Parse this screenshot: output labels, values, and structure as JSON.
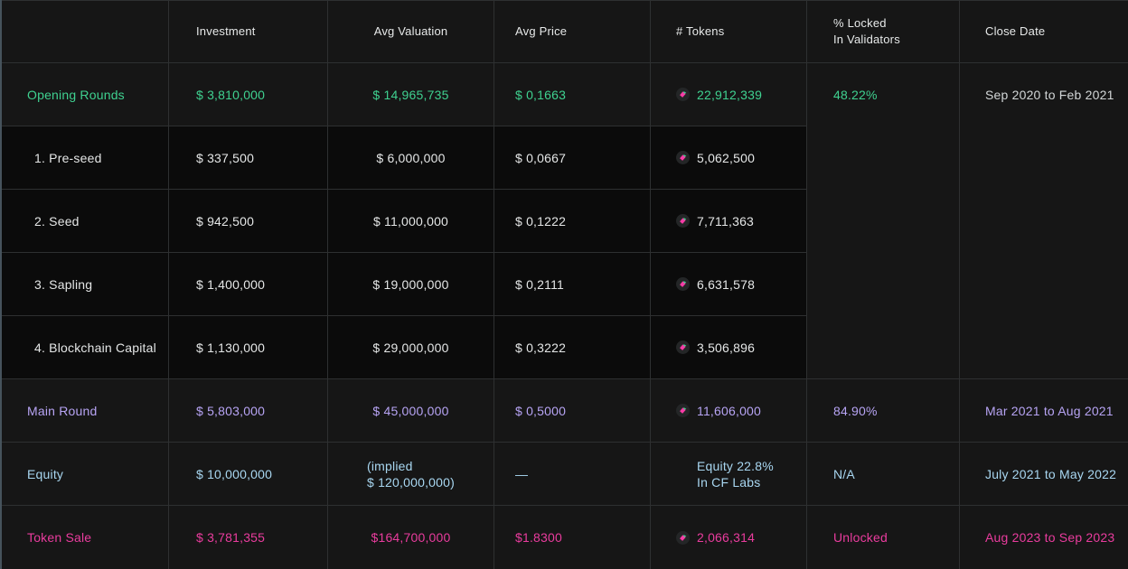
{
  "header": {
    "label": "",
    "investment": "Investment",
    "avg_valuation": "Avg Valuation",
    "avg_price": "Avg Price",
    "tokens": "# Tokens",
    "locked_line1": "% Locked",
    "locked_line2": "In Validators",
    "close_date": "Close Date"
  },
  "rows": [
    {
      "id": "opening-rounds",
      "label": "Opening Rounds",
      "tone": "green",
      "shade": "light",
      "indent": false,
      "investment": "$ 3,810,000",
      "avg_valuation": "$ 14,965,735",
      "avg_price": "$ 0,1663",
      "tokens": "22,912,339",
      "token_icon": true,
      "locked": "48.22%",
      "close_date": "Sep 2020 to Feb 2021",
      "close_date_muted": true
    },
    {
      "id": "pre-seed",
      "label": "1. Pre-seed",
      "tone": "neutral",
      "shade": "dark",
      "indent": true,
      "investment": "$ 337,500",
      "avg_valuation": "$ 6,000,000",
      "avg_price": "$ 0,0667",
      "tokens": "5,062,500",
      "token_icon": true,
      "locked": null,
      "close_date": null
    },
    {
      "id": "seed",
      "label": "2. Seed",
      "tone": "neutral",
      "shade": "dark",
      "indent": true,
      "investment": "$ 942,500",
      "avg_valuation": "$ 11,000,000",
      "avg_price": "$ 0,1222",
      "tokens": "7,711,363",
      "token_icon": true,
      "locked": null,
      "close_date": null
    },
    {
      "id": "sapling",
      "label": "3. Sapling",
      "tone": "neutral",
      "shade": "dark",
      "indent": true,
      "investment": "$ 1,400,000",
      "avg_valuation": "$ 19,000,000",
      "avg_price": "$ 0,2111",
      "tokens": "6,631,578",
      "token_icon": true,
      "locked": null,
      "close_date": null
    },
    {
      "id": "blockchain-capital",
      "label": "4. Blockchain Capital",
      "tone": "neutral",
      "shade": "dark",
      "indent": true,
      "investment": "$ 1,130,000",
      "avg_valuation": "$ 29,000,000",
      "avg_price": "$ 0,3222",
      "tokens": "3,506,896",
      "token_icon": true,
      "locked": null,
      "close_date": null
    },
    {
      "id": "main-round",
      "label": "Main Round",
      "tone": "purple",
      "shade": "light",
      "indent": false,
      "investment": "$ 5,803,000",
      "avg_valuation": "$ 45,000,000",
      "avg_price": "$ 0,5000",
      "tokens": "11,606,000",
      "token_icon": true,
      "locked": "84.90%",
      "close_date": "Mar 2021 to Aug 2021",
      "close_date_muted": false
    },
    {
      "id": "equity",
      "label": "Equity",
      "tone": "blue",
      "shade": "light",
      "indent": false,
      "investment": "$ 10,000,000",
      "avg_valuation": [
        "(implied",
        "$ 120,000,000)"
      ],
      "avg_price": "—",
      "tokens": [
        "Equity 22.8%",
        "In CF Labs"
      ],
      "token_icon": false,
      "locked": "N/A",
      "close_date": "July 2021 to May 2022",
      "close_date_muted": false
    },
    {
      "id": "token-sale",
      "label": "Token Sale",
      "tone": "pink",
      "shade": "light",
      "indent": false,
      "investment": "$ 3,781,355",
      "avg_valuation": "$164,700,000",
      "avg_price": "$1.8300",
      "tokens": "2,066,314",
      "token_icon": true,
      "locked": "Unlocked",
      "close_date": "Aug 2023 to Sep 2023",
      "close_date_muted": false
    }
  ],
  "icons": {
    "token_icon": "chainflip-token-icon"
  },
  "colors": {
    "green": "#3fd190",
    "purple": "#b7a4f4",
    "blue": "#a8d6f0",
    "pink": "#ea3c9e",
    "neutral_text": "#e4e6e6",
    "muted_text": "#d2d6d7",
    "header_text": "#e7e9e9",
    "row_bg_light": "#161616",
    "row_bg_dark": "#0b0b0b",
    "grid_line": "#2e3031",
    "left_edge": "#46535c",
    "token_icon_bg": "#242627",
    "token_icon_pink": "#f93ba6",
    "token_icon_green": "#35d98a"
  }
}
